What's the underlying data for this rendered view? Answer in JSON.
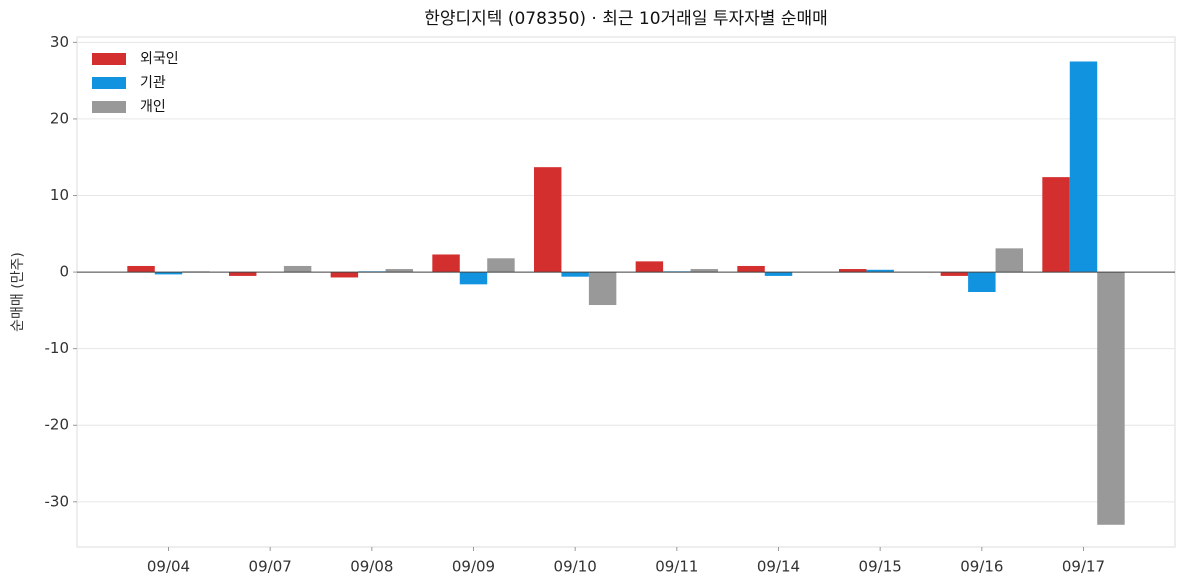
{
  "chart_data": {
    "type": "bar",
    "title": "한양디지텍 (078350) · 최근 10거래일 투자자별 순매매",
    "y_label": "순매매 (만주)",
    "categories": [
      "09/04",
      "09/07",
      "09/08",
      "09/09",
      "09/10",
      "09/11",
      "09/14",
      "09/15",
      "09/16",
      "09/17"
    ],
    "series": [
      {
        "name": "외국인",
        "color": "#d32f2f",
        "values": [
          0.8,
          -0.5,
          -0.7,
          2.3,
          13.7,
          1.4,
          0.8,
          0.4,
          -0.5,
          12.4
        ]
      },
      {
        "name": "기관",
        "color": "#1193e0",
        "values": [
          -0.3,
          0,
          0.1,
          -1.6,
          -0.6,
          0.1,
          -0.5,
          0.3,
          -2.6,
          27.5
        ]
      },
      {
        "name": "개인",
        "color": "#999999",
        "values": [
          0.1,
          0.8,
          0.4,
          1.8,
          -4.3,
          0.4,
          0,
          0,
          3.1,
          -33.0
        ]
      }
    ],
    "ylim": [
      -35.9,
      30.7
    ],
    "yticks": [
      -30,
      -20,
      -10,
      0,
      10,
      20,
      30
    ],
    "grid": true,
    "legend": "upper left"
  }
}
